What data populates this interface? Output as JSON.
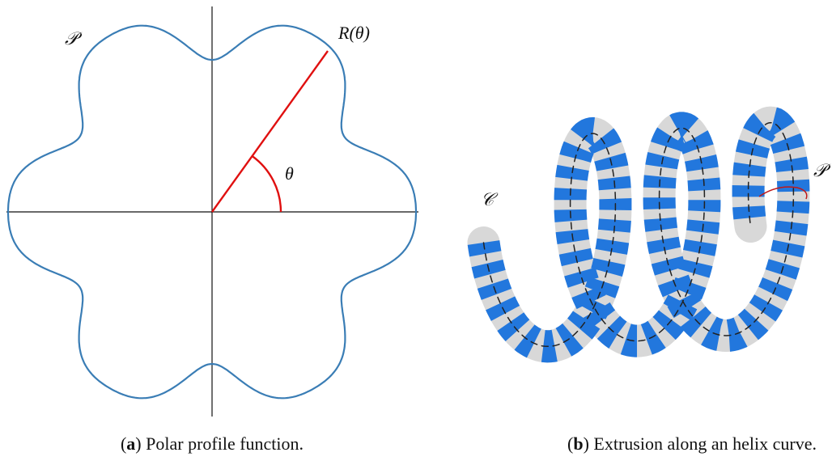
{
  "panel_a": {
    "profile_label": "𝒫",
    "radius_label": "R(θ)",
    "angle_label": "θ",
    "caption_letter": "a",
    "caption_text": "Polar profile function."
  },
  "panel_b": {
    "curve_label": "𝒞",
    "profile_label": "𝒫",
    "caption_letter": "b",
    "caption_text": "Extrusion along an helix curve."
  }
}
